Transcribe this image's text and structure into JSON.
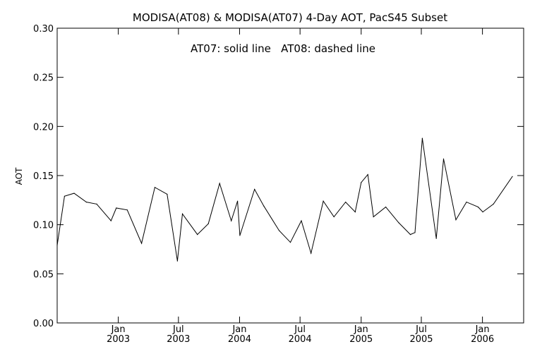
{
  "chart_data": {
    "type": "line",
    "title": "MODISA(AT08) & MODISA(AT07) 4-Day AOT, PacS45 Subset",
    "annotation": "AT07: solid line   AT08: dashed line",
    "xlabel": "",
    "ylabel": "AOT",
    "ylim": [
      0.0,
      0.3
    ],
    "y_ticks": [
      "0.00",
      "0.05",
      "0.10",
      "0.15",
      "0.20",
      "0.25",
      "0.30"
    ],
    "x_range": [
      "2002-07-01",
      "2006-05-05"
    ],
    "x_ticks": [
      {
        "date": "2003-01-01",
        "month": "Jan",
        "year": "2003"
      },
      {
        "date": "2003-07-01",
        "month": "Jul",
        "year": "2003"
      },
      {
        "date": "2004-01-01",
        "month": "Jan",
        "year": "2004"
      },
      {
        "date": "2004-07-01",
        "month": "Jul",
        "year": "2004"
      },
      {
        "date": "2005-01-01",
        "month": "Jan",
        "year": "2005"
      },
      {
        "date": "2005-07-01",
        "month": "Jul",
        "year": "2005"
      },
      {
        "date": "2006-01-01",
        "month": "Jan",
        "year": "2006"
      }
    ],
    "grid": false,
    "series": [
      {
        "name": "AT07",
        "style": "solid",
        "color": "#000000",
        "points": [
          [
            "2002-07-01",
            0.079
          ],
          [
            "2002-07-23",
            0.129
          ],
          [
            "2002-08-21",
            0.132
          ],
          [
            "2002-09-27",
            0.123
          ],
          [
            "2002-10-28",
            0.121
          ],
          [
            "2002-12-10",
            0.104
          ],
          [
            "2002-12-26",
            0.117
          ],
          [
            "2003-01-28",
            0.115
          ],
          [
            "2003-03-12",
            0.081
          ],
          [
            "2003-04-21",
            0.138
          ],
          [
            "2003-05-28",
            0.131
          ],
          [
            "2003-06-28",
            0.063
          ],
          [
            "2003-07-13",
            0.111
          ],
          [
            "2003-08-27",
            0.09
          ],
          [
            "2003-09-29",
            0.101
          ],
          [
            "2003-11-02",
            0.142
          ],
          [
            "2003-12-07",
            0.104
          ],
          [
            "2003-12-26",
            0.124
          ],
          [
            "2004-01-02",
            0.089
          ],
          [
            "2004-02-15",
            0.136
          ],
          [
            "2004-03-14",
            0.119
          ],
          [
            "2004-04-29",
            0.094
          ],
          [
            "2004-06-02",
            0.082
          ],
          [
            "2004-07-05",
            0.104
          ],
          [
            "2004-08-03",
            0.071
          ],
          [
            "2004-09-09",
            0.124
          ],
          [
            "2004-10-11",
            0.108
          ],
          [
            "2004-11-15",
            0.123
          ],
          [
            "2004-12-14",
            0.113
          ],
          [
            "2005-01-01",
            0.143
          ],
          [
            "2005-01-21",
            0.151
          ],
          [
            "2005-02-07",
            0.108
          ],
          [
            "2005-03-16",
            0.118
          ],
          [
            "2005-04-24",
            0.102
          ],
          [
            "2005-05-29",
            0.09
          ],
          [
            "2005-06-12",
            0.092
          ],
          [
            "2005-07-04",
            0.188
          ],
          [
            "2005-08-15",
            0.086
          ],
          [
            "2005-09-06",
            0.167
          ],
          [
            "2005-10-13",
            0.105
          ],
          [
            "2005-11-14",
            0.123
          ],
          [
            "2005-12-19",
            0.118
          ],
          [
            "2006-01-02",
            0.113
          ],
          [
            "2006-02-03",
            0.121
          ],
          [
            "2006-04-01",
            0.149
          ]
        ]
      }
    ]
  }
}
